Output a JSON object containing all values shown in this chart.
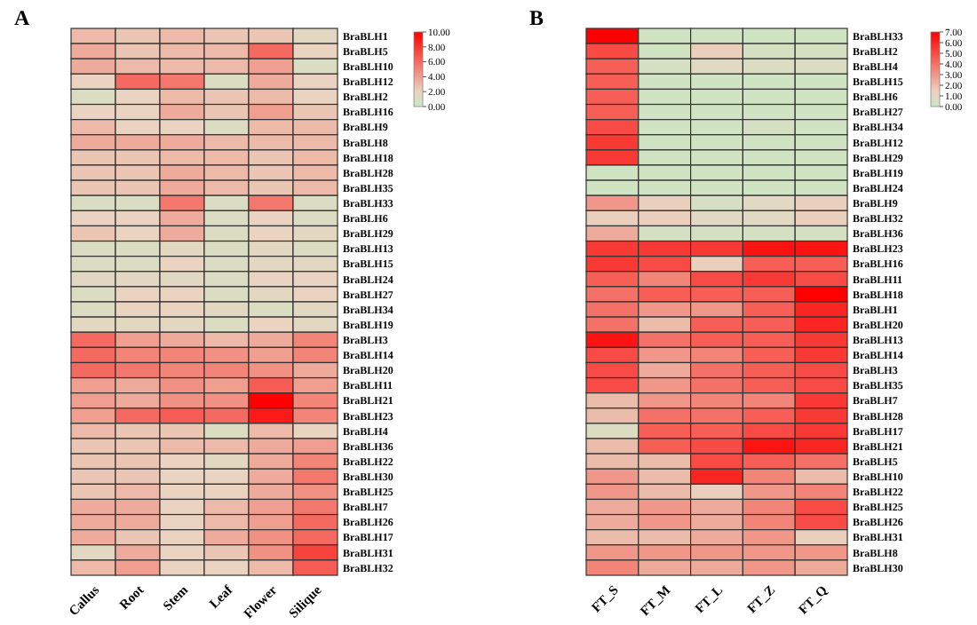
{
  "chart_data": [
    {
      "type": "heatmap",
      "title": "A",
      "categories": [
        "Callus",
        "Root",
        "Stem",
        "Leaf",
        "Flower",
        "Silique"
      ],
      "y_categories": [
        "BraBLH1",
        "BraBLH5",
        "BraBLH10",
        "BraBLH12",
        "BraBLH2",
        "BraBLH16",
        "BraBLH9",
        "BraBLH8",
        "BraBLH18",
        "BraBLH28",
        "BraBLH35",
        "BraBLH33",
        "BraBLH6",
        "BraBLH29",
        "BraBLH13",
        "BraBLH15",
        "BraBLH24",
        "BraBLH27",
        "BraBLH34",
        "BraBLH19",
        "BraBLH3",
        "BraBLH14",
        "BraBLH20",
        "BraBLH11",
        "BraBLH21",
        "BraBLH23",
        "BraBLH4",
        "BraBLH36",
        "BraBLH22",
        "BraBLH30",
        "BraBLH25",
        "BraBLH7",
        "BraBLH26",
        "BraBLH17",
        "BraBLH31",
        "BraBLH32"
      ],
      "cells": [
        [
          3,
          2.5,
          3,
          2.5,
          2.5,
          1.5
        ],
        [
          3.5,
          2.5,
          3,
          3,
          6,
          2
        ],
        [
          3.5,
          3,
          3,
          3,
          4,
          1
        ],
        [
          2,
          6,
          5.5,
          1,
          3.5,
          2
        ],
        [
          1,
          2,
          3,
          2.5,
          3,
          2
        ],
        [
          2,
          2,
          3.5,
          2.5,
          4,
          2.5
        ],
        [
          3,
          2,
          2,
          1,
          3,
          3
        ],
        [
          3.5,
          3.5,
          3.5,
          3,
          3,
          3
        ],
        [
          2.5,
          2.5,
          3,
          3,
          2.5,
          3
        ],
        [
          2.5,
          2.5,
          3.5,
          3,
          2.5,
          3
        ],
        [
          2.5,
          2.5,
          3.5,
          3,
          2.5,
          3
        ],
        [
          1,
          1,
          5.5,
          1,
          5.5,
          1
        ],
        [
          2,
          2,
          3.5,
          1,
          2,
          1
        ],
        [
          2.5,
          2,
          3.5,
          1,
          2,
          1.5
        ],
        [
          1,
          1,
          1.5,
          1,
          1.5,
          1
        ],
        [
          1,
          1,
          2,
          1,
          1.5,
          1.5
        ],
        [
          1.5,
          1.5,
          1.5,
          1,
          2,
          2
        ],
        [
          1,
          2,
          2,
          1,
          1.5,
          2
        ],
        [
          1,
          2,
          2,
          1.5,
          1,
          1.5
        ],
        [
          1.5,
          1.5,
          1.5,
          1,
          2,
          1.5
        ],
        [
          6,
          4,
          3.5,
          3,
          3.5,
          5
        ],
        [
          6,
          5,
          5,
          4.5,
          4,
          5
        ],
        [
          6,
          5.5,
          5,
          5,
          4.5,
          3.5
        ],
        [
          4,
          3.5,
          4.5,
          4,
          6.5,
          4
        ],
        [
          4,
          3.5,
          4.5,
          4.5,
          10,
          5
        ],
        [
          4,
          6,
          6.5,
          6,
          9,
          5
        ],
        [
          3,
          2.5,
          2.5,
          1,
          3,
          2
        ],
        [
          2.5,
          2.5,
          3,
          3,
          3.5,
          4
        ],
        [
          2.5,
          2.5,
          2,
          1.5,
          3.5,
          5
        ],
        [
          2.5,
          2.5,
          2,
          2,
          3.5,
          5.5
        ],
        [
          2.5,
          3,
          2,
          2,
          3.5,
          4.5
        ],
        [
          3.5,
          3.5,
          2,
          3,
          4,
          5.5
        ],
        [
          3.5,
          3.5,
          2,
          3,
          4,
          6
        ],
        [
          3.5,
          2.5,
          2,
          3.5,
          4.5,
          6
        ],
        [
          1.5,
          3.5,
          2,
          2.5,
          4.5,
          7.5
        ],
        [
          3,
          4,
          2,
          2,
          3,
          6.5
        ]
      ],
      "clim": [
        0,
        10
      ],
      "cticks": [
        {
          "value": 0,
          "label": "0.00"
        },
        {
          "value": 2,
          "label": "2.00"
        },
        {
          "value": 4,
          "label": "4.00"
        },
        {
          "value": 6,
          "label": "6.00"
        },
        {
          "value": 8,
          "label": "8.00"
        },
        {
          "value": 10,
          "label": "10.00"
        }
      ]
    },
    {
      "type": "heatmap",
      "title": "B",
      "categories": [
        "FT_S",
        "FT_M",
        "FT_L",
        "FT_Z",
        "FT_Q"
      ],
      "y_categories": [
        "BraBLH33",
        "BraBLH2",
        "BraBLH4",
        "BraBLH15",
        "BraBLH6",
        "BraBLH27",
        "BraBLH34",
        "BraBLH12",
        "BraBLH29",
        "BraBLH19",
        "BraBLH24",
        "BraBLH9",
        "BraBLH32",
        "BraBLH36",
        "BraBLH23",
        "BraBLH16",
        "BraBLH11",
        "BraBLH18",
        "BraBLH1",
        "BraBLH20",
        "BraBLH13",
        "BraBLH14",
        "BraBLH3",
        "BraBLH35",
        "BraBLH7",
        "BraBLH28",
        "BraBLH17",
        "BraBLH21",
        "BraBLH5",
        "BraBLH10",
        "BraBLH22",
        "BraBLH25",
        "BraBLH26",
        "BraBLH31",
        "BraBLH8",
        "BraBLH30"
      ],
      "cells": [
        [
          7,
          0.3,
          0.3,
          0.3,
          0.3
        ],
        [
          5,
          0.3,
          1.5,
          0.5,
          0.5
        ],
        [
          4.5,
          0.5,
          1,
          0.8,
          0.8
        ],
        [
          4.5,
          0.3,
          0.3,
          0.3,
          0.3
        ],
        [
          4.5,
          0.3,
          0.3,
          0.3,
          0.3
        ],
        [
          4.5,
          0.3,
          0.3,
          0.3,
          0.3
        ],
        [
          5,
          0.3,
          0.3,
          0.5,
          0.3
        ],
        [
          5.5,
          0.3,
          0.3,
          0.3,
          0.3
        ],
        [
          5.5,
          0.3,
          0.3,
          0.3,
          0.3
        ],
        [
          0.3,
          0.3,
          0.3,
          0.3,
          0.3
        ],
        [
          0.3,
          0.3,
          0.3,
          0.3,
          0.3
        ],
        [
          3,
          1.5,
          0.5,
          1,
          1.5
        ],
        [
          1.5,
          1.5,
          1,
          1,
          1.5
        ],
        [
          2.5,
          0.5,
          0.5,
          0.5,
          0.5
        ],
        [
          5.5,
          5.5,
          5.5,
          6.5,
          6.5
        ],
        [
          5.5,
          5,
          1.5,
          4.5,
          4.5
        ],
        [
          4.5,
          3.5,
          5,
          5.5,
          5
        ],
        [
          4,
          4.5,
          4.5,
          4.5,
          7
        ],
        [
          4,
          3,
          3,
          4.5,
          6
        ],
        [
          4,
          2,
          4.5,
          4.5,
          6
        ],
        [
          6.5,
          4,
          4.5,
          4.5,
          5.5
        ],
        [
          5,
          3,
          3.5,
          4.5,
          5.5
        ],
        [
          5,
          2.5,
          4,
          4.5,
          5
        ],
        [
          5,
          3,
          4,
          4.5,
          5
        ],
        [
          2,
          3,
          3.5,
          3.5,
          5.5
        ],
        [
          2,
          4,
          4,
          4.5,
          5.5
        ],
        [
          0.8,
          4.5,
          4.5,
          5,
          5.5
        ],
        [
          2,
          4.5,
          5,
          6.5,
          6
        ],
        [
          2,
          2,
          5,
          4.5,
          4
        ],
        [
          3,
          2,
          6,
          3.5,
          2
        ],
        [
          3,
          2,
          1.5,
          3,
          3.5
        ],
        [
          2.5,
          3,
          2.5,
          3.5,
          5
        ],
        [
          2.5,
          3,
          2.5,
          3.5,
          5
        ],
        [
          2,
          2,
          2.5,
          3,
          1.5
        ],
        [
          3,
          3,
          3,
          3,
          3
        ],
        [
          3.5,
          2.5,
          2.5,
          3,
          2.5
        ]
      ],
      "clim": [
        0,
        7
      ],
      "cticks": [
        {
          "value": 0,
          "label": "0.00"
        },
        {
          "value": 1,
          "label": "1.00"
        },
        {
          "value": 2,
          "label": "2.00"
        },
        {
          "value": 3,
          "label": "3.00"
        },
        {
          "value": 4,
          "label": "4.00"
        },
        {
          "value": 5,
          "label": "5.00"
        },
        {
          "value": 6,
          "label": "6.00"
        },
        {
          "value": 7,
          "label": "7.00"
        }
      ]
    }
  ]
}
